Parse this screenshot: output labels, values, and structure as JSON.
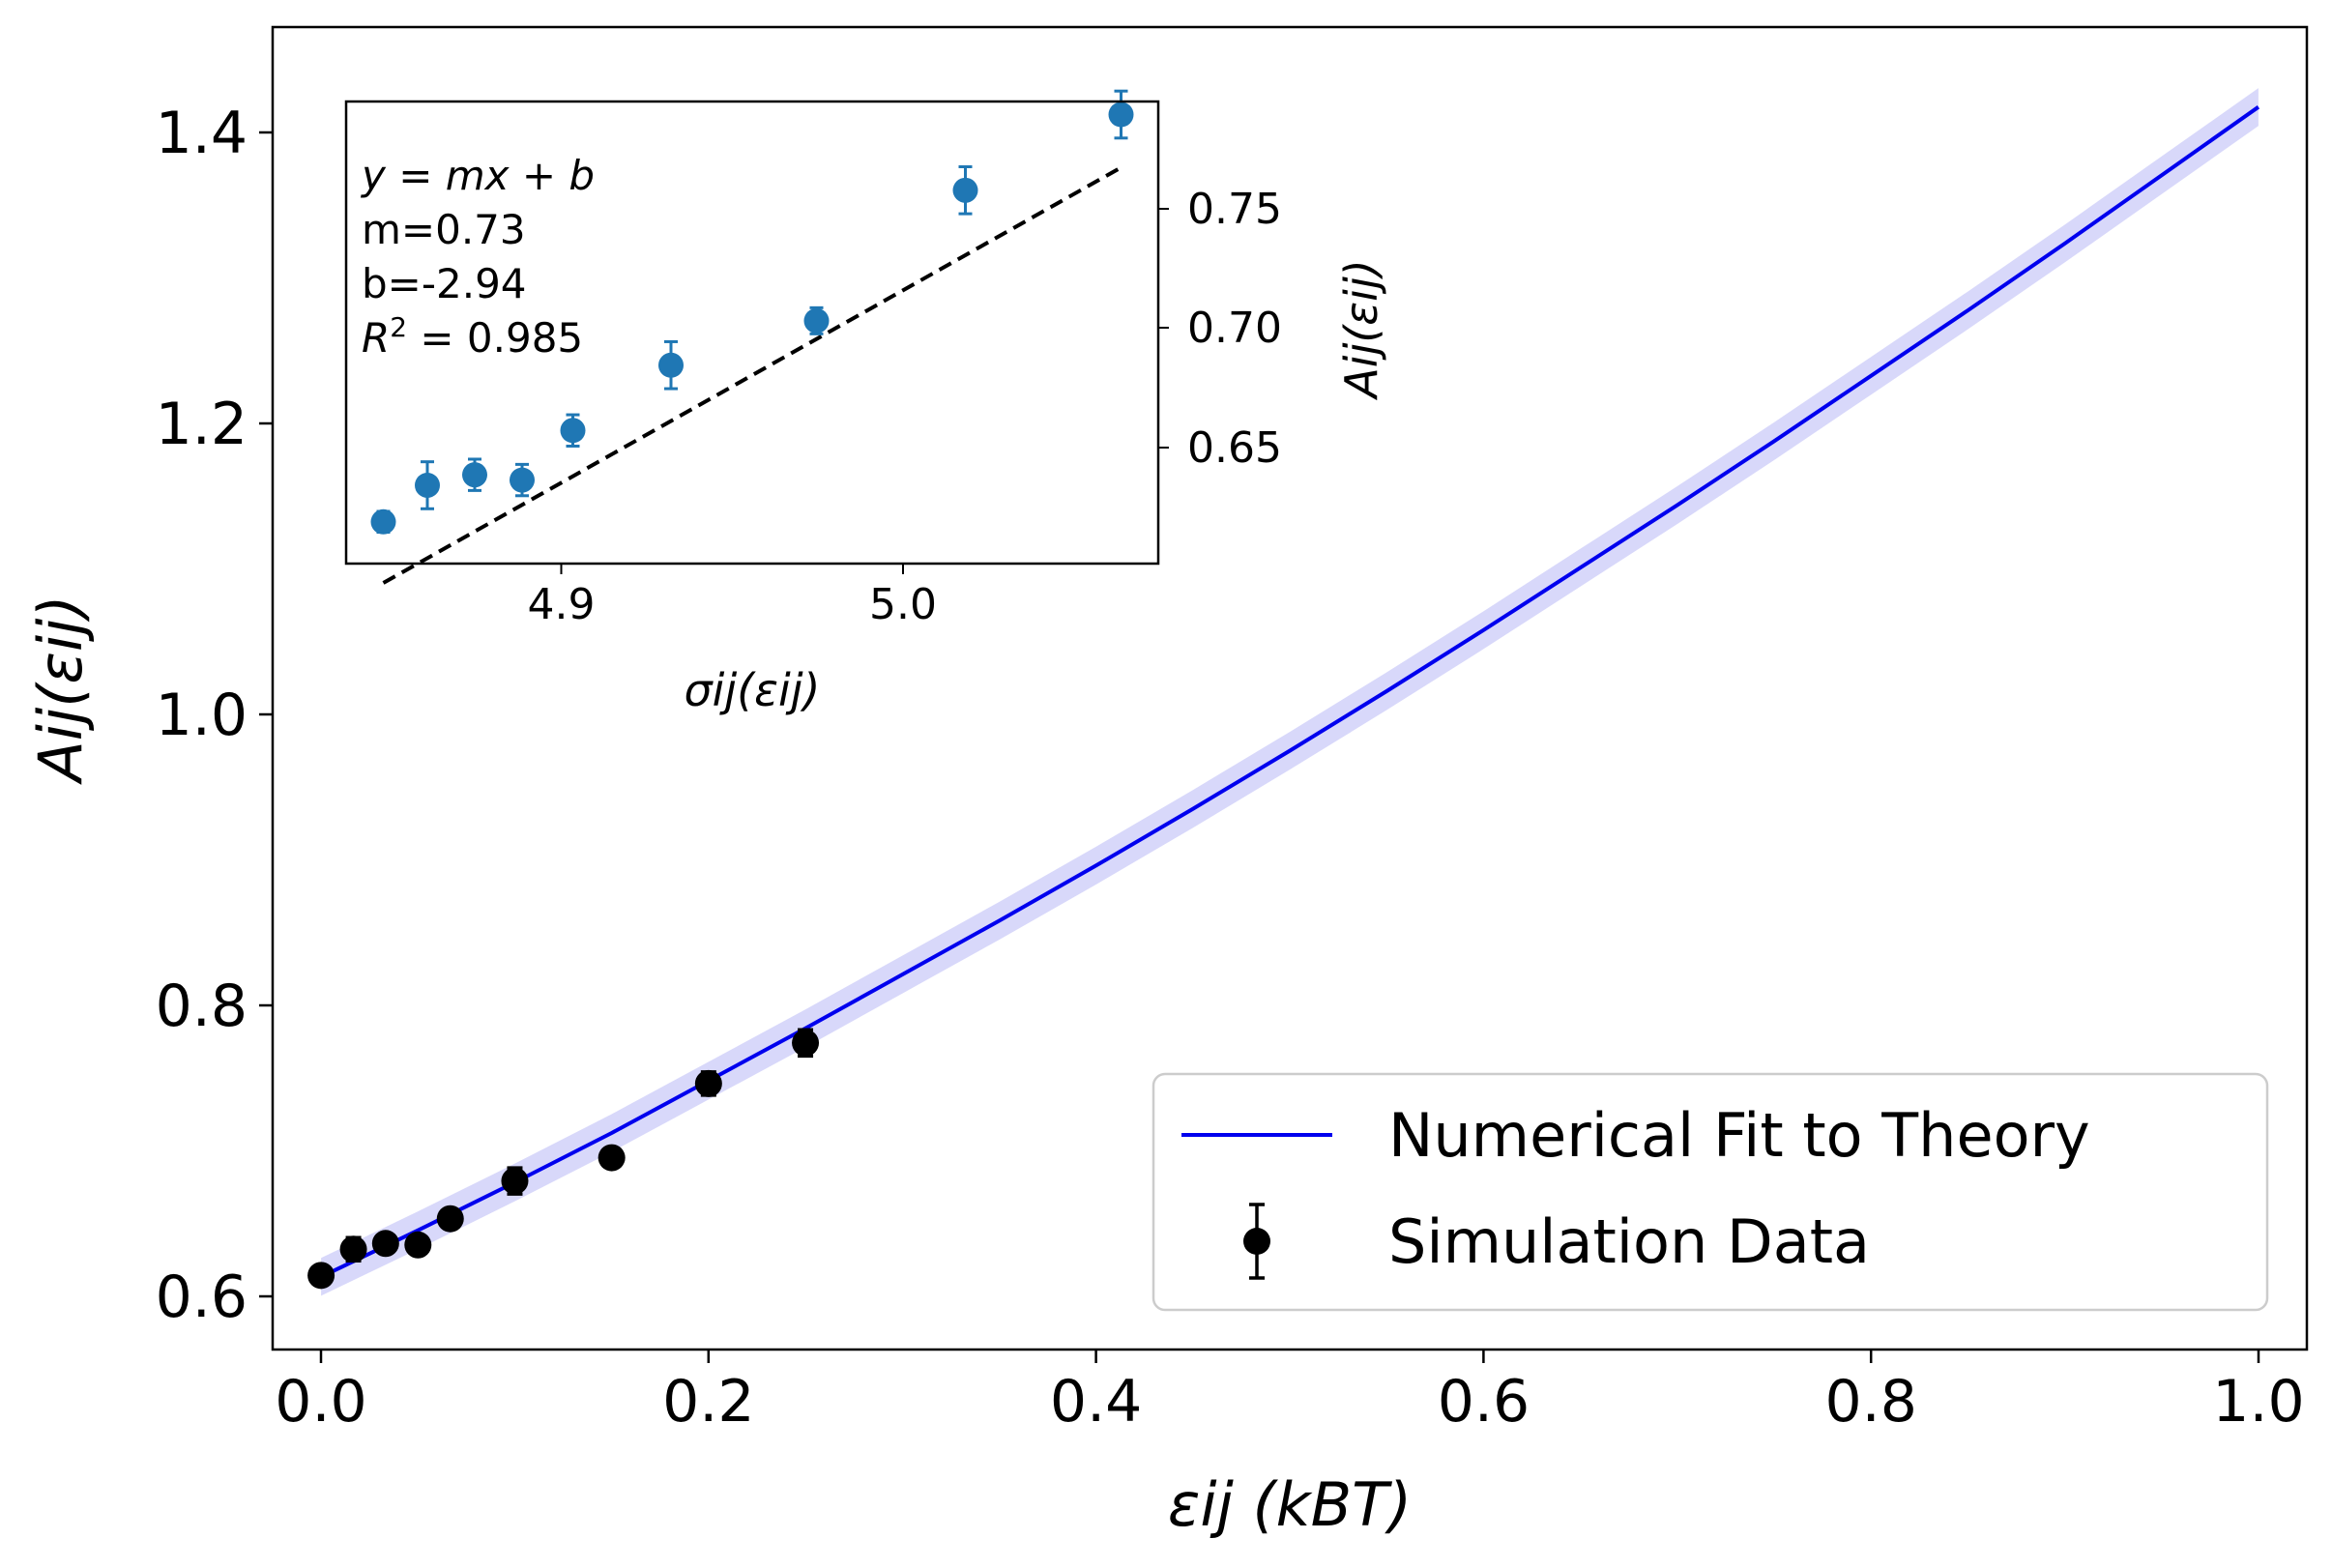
{
  "chart_data": [
    {
      "type": "line",
      "xlabel": "εij (kBT)",
      "ylabel": "Aij(εij)",
      "xlim": [
        -0.025,
        1.025
      ],
      "ylim": [
        0.565,
        1.475
      ],
      "xticks": [
        0.0,
        0.2,
        0.4,
        0.6,
        0.8,
        1.0
      ],
      "xtick_labels": [
        "0.0",
        "0.2",
        "0.4",
        "0.6",
        "0.8",
        "1.0"
      ],
      "yticks": [
        0.6,
        0.8,
        1.0,
        1.2,
        1.4
      ],
      "ytick_labels": [
        "0.6",
        "0.8",
        "1.0",
        "1.2",
        "1.4"
      ],
      "grid": false,
      "legend_position": "lower-right",
      "legend": [
        "Numerical Fit to Theory",
        "Simulation Data"
      ],
      "series": [
        {
          "name": "Numerical Fit to Theory",
          "kind": "line",
          "color": "#0000ee",
          "band_color": "#c8c8f8",
          "x": [
            0.0,
            0.05,
            0.1,
            0.15,
            0.2,
            0.25,
            0.3,
            0.35,
            0.4,
            0.45,
            0.5,
            0.55,
            0.6,
            0.65,
            0.7,
            0.75,
            0.8,
            0.85,
            0.9,
            0.95,
            1.0
          ],
          "y": [
            0.615,
            0.647,
            0.68,
            0.714,
            0.75,
            0.786,
            0.823,
            0.86,
            0.898,
            0.937,
            0.977,
            1.018,
            1.06,
            1.103,
            1.146,
            1.19,
            1.235,
            1.28,
            1.326,
            1.373,
            1.42
          ],
          "band_halfwidth": 0.013
        },
        {
          "name": "Simulation Data",
          "kind": "errorbar",
          "color": "#000000",
          "x": [
            0.0,
            0.0167,
            0.0333,
            0.05,
            0.0667,
            0.1,
            0.15,
            0.2,
            0.25
          ],
          "y": [
            0.616,
            0.634,
            0.638,
            0.637,
            0.655,
            0.681,
            0.697,
            0.748,
            0.776
          ],
          "yerr": [
            0.004,
            0.008,
            0.006,
            0.005,
            0.005,
            0.009,
            0.005,
            0.008,
            0.009
          ]
        }
      ]
    },
    {
      "type": "scatter",
      "inset": true,
      "xlabel": "σij(εij)",
      "ylabel": "Aij(εij)",
      "xlim": [
        4.835,
        5.075
      ],
      "ylim": [
        0.605,
        0.782
      ],
      "xticks": [
        4.9,
        5.0
      ],
      "xtick_labels": [
        "4.9",
        "5.0"
      ],
      "yticks": [
        0.65,
        0.7,
        0.75
      ],
      "ytick_labels": [
        "0.65",
        "0.70",
        "0.75"
      ],
      "y_axis_side": "right",
      "annotation": {
        "equation": "y = mx + b",
        "m": "m=0.73",
        "b": "b=-2.94",
        "r2_label": "R",
        "r2_value": " = 0.985"
      },
      "series": [
        {
          "kind": "errorbar",
          "color": "#1f77b4",
          "x": [
            4.846,
            4.859,
            4.873,
            4.887,
            4.902,
            4.931,
            4.974,
            5.018,
            5.064
          ],
          "y": [
            0.621,
            0.635,
            0.639,
            0.637,
            0.656,
            0.681,
            0.698,
            0.748,
            0.777
          ],
          "yerr": [
            0.004,
            0.009,
            0.006,
            0.006,
            0.006,
            0.009,
            0.005,
            0.009,
            0.009
          ]
        },
        {
          "kind": "fit-line",
          "style": "dashed",
          "color": "#000000",
          "slope": 0.73,
          "intercept": -2.94,
          "x": [
            4.846,
            5.064
          ]
        }
      ]
    }
  ]
}
